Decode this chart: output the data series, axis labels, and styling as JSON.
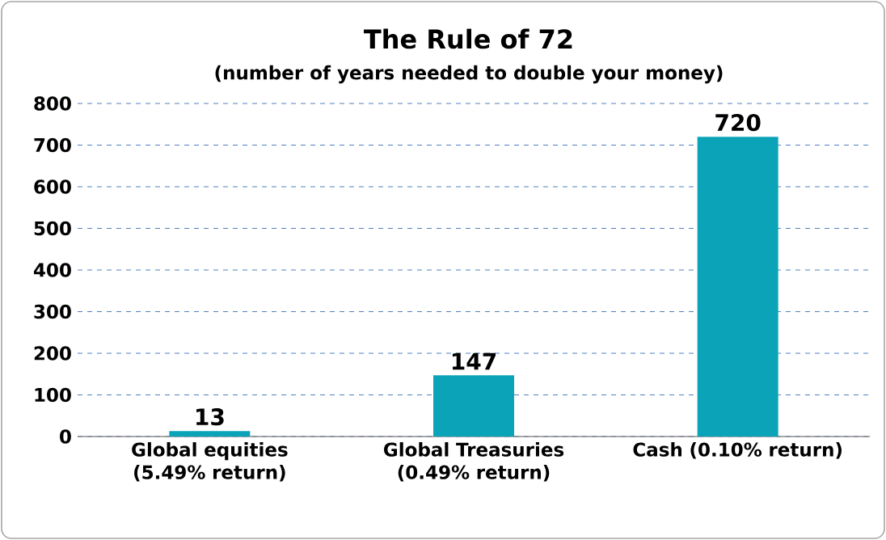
{
  "chart_data": {
    "type": "bar",
    "title": "The Rule of 72",
    "subtitle": "(number of years needed to double your money)",
    "categories": [
      "Global equities (5.49% return)",
      "Global Treasuries (0.49% return)",
      "Cash (0.10% return)"
    ],
    "values": [
      13,
      147,
      720
    ],
    "color": "#0aa3b8",
    "ylim": [
      0,
      800
    ],
    "yticks": [
      0,
      100,
      200,
      300,
      400,
      500,
      600,
      700,
      800
    ],
    "grid": "y",
    "data_labels": true
  }
}
